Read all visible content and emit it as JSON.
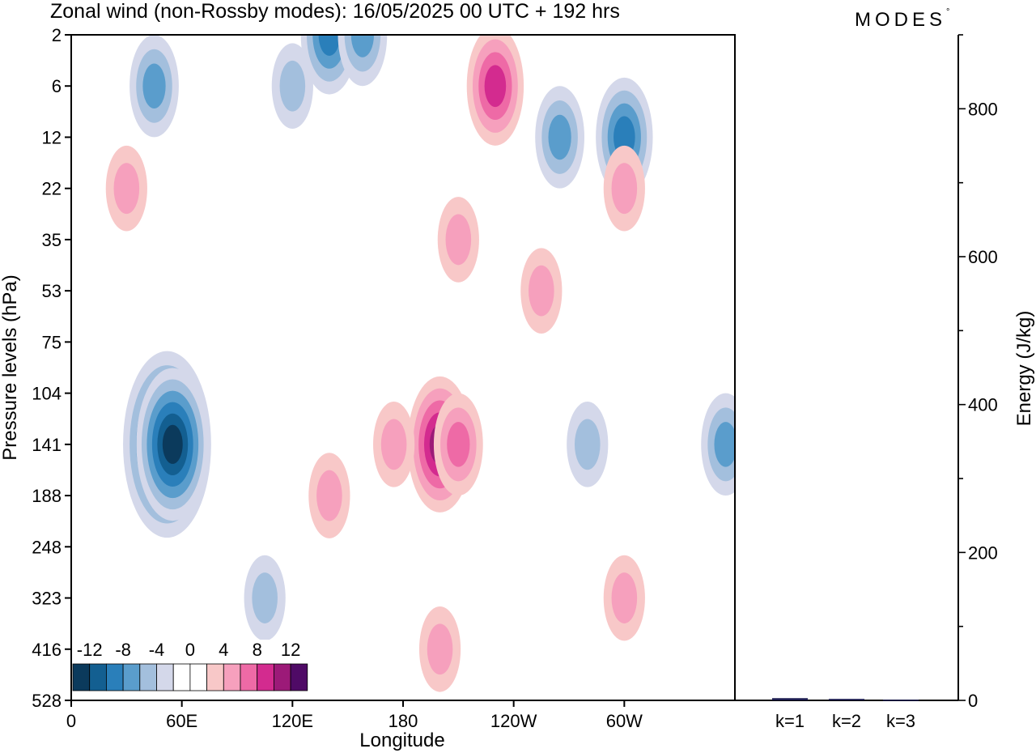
{
  "title": "Zonal wind (non-Rossby modes):  16/05/2025  00 UTC  + 192 hrs",
  "brand": "MODES",
  "brand_mark": "°",
  "chart_data": [
    {
      "type": "heatmap",
      "xlabel": "Longitude",
      "ylabel": "Pressure levels (hPa)",
      "x_ticks": [
        "0",
        "60E",
        "120E",
        "180",
        "120W",
        "60W"
      ],
      "x_tick_degrees": [
        0,
        60,
        120,
        180,
        240,
        300
      ],
      "xlim": [
        0,
        360
      ],
      "y_ticks": [
        "2",
        "6",
        "12",
        "22",
        "35",
        "53",
        "75",
        "104",
        "141",
        "188",
        "248",
        "323",
        "416",
        "528"
      ],
      "colorbar": {
        "labels": [
          "-12",
          "-8",
          "-4",
          "0",
          "4",
          "8",
          "12"
        ],
        "colors": [
          "#0b3a5c",
          "#135f91",
          "#2a7fba",
          "#5a9dcc",
          "#a3bfdd",
          "#d4d8ea",
          "#ffffff",
          "#ffffff",
          "#f8c8c8",
          "#f6a0bd",
          "#ee6aa6",
          "#d32b8f",
          "#9c1a78",
          "#4f0a66"
        ]
      },
      "features": [
        {
          "lon": 45,
          "level": "6",
          "value": -6
        },
        {
          "lon": 120,
          "level": "6",
          "value": -4
        },
        {
          "lon": 140,
          "level": "2",
          "value": -8
        },
        {
          "lon": 158,
          "level": "2",
          "value": -6
        },
        {
          "lon": 230,
          "level": "6",
          "value": 8
        },
        {
          "lon": 265,
          "level": "12",
          "value": -6
        },
        {
          "lon": 300,
          "level": "12",
          "value": -8
        },
        {
          "lon": 30,
          "level": "22",
          "value": 4
        },
        {
          "lon": 300,
          "level": "22",
          "value": 4
        },
        {
          "lon": 210,
          "level": "35",
          "value": 4
        },
        {
          "lon": 255,
          "level": "53",
          "value": 4
        },
        {
          "lon": 52,
          "level": "141",
          "value": -16
        },
        {
          "lon": 55,
          "level": "141",
          "value": -12
        },
        {
          "lon": 200,
          "level": "141",
          "value": 10
        },
        {
          "lon": 210,
          "level": "141",
          "value": 6
        },
        {
          "lon": 175,
          "level": "141",
          "value": 4
        },
        {
          "lon": 140,
          "level": "188",
          "value": 4
        },
        {
          "lon": 355,
          "level": "141",
          "value": -6
        },
        {
          "lon": 280,
          "level": "141",
          "value": -4
        },
        {
          "lon": 200,
          "level": "416",
          "value": 4
        },
        {
          "lon": 105,
          "level": "323",
          "value": -4
        },
        {
          "lon": 300,
          "level": "323",
          "value": 4
        }
      ]
    },
    {
      "type": "bar",
      "categories": [
        "k=1",
        "k=2",
        "k=3"
      ],
      "values": [
        3,
        2,
        1
      ],
      "ylabel": "Energy (J/kg)",
      "ylim": [
        0,
        900
      ],
      "y_ticks": [
        0,
        200,
        400,
        600,
        800
      ],
      "bar_color": "#1c1c50"
    }
  ]
}
